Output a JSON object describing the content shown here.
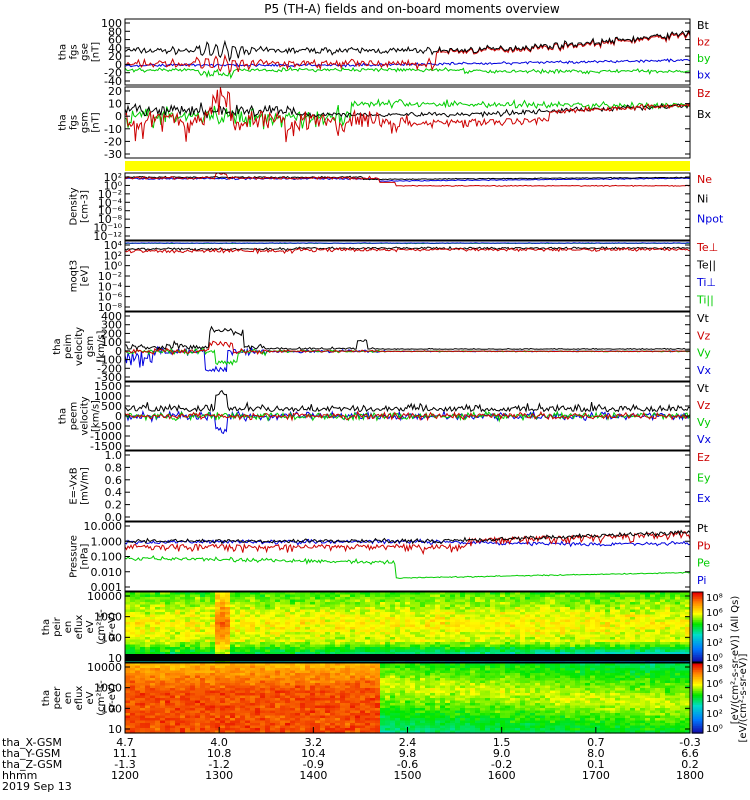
{
  "title": "P5 (TH-A) fields and on-board moments overview",
  "colors": {
    "black": "#000000",
    "red": "#cc0000",
    "green": "#00cc00",
    "blue": "#0000dd",
    "yellow": "#ffff00",
    "axis": "#000000"
  },
  "panels": [
    {
      "id": "fgs-mag",
      "ylabel": [
        "tha",
        "fgs",
        "gse",
        "[nT]"
      ],
      "ticks": [
        "100",
        "80",
        "60",
        "40",
        "20",
        "0",
        "-20",
        "-40"
      ],
      "legend": [
        {
          "label": "Bt",
          "color": "#000000"
        },
        {
          "label": "bz",
          "color": "#cc0000"
        },
        {
          "label": "by",
          "color": "#00cc00"
        },
        {
          "label": "bx",
          "color": "#0000dd"
        }
      ]
    },
    {
      "id": "fgs-gsm",
      "ylabel": [
        "tha",
        "fgs",
        "gsm",
        "[nT]"
      ],
      "ticks": [
        "20",
        "10",
        "0",
        "-10",
        "-20",
        "-30"
      ],
      "legend": [
        {
          "label": "Bz",
          "color": "#cc0000"
        },
        {
          "label": "Bx",
          "color": "#000000"
        }
      ]
    },
    {
      "id": "density",
      "ylabel": [
        "Density",
        "[cm-3]"
      ],
      "ticks": [
        "10²",
        "10⁰",
        "10⁻²",
        "10⁻⁴",
        "10⁻⁶",
        "10⁻⁸",
        "10⁻¹⁰",
        "10⁻¹²"
      ],
      "legend": [
        {
          "label": "Ne",
          "color": "#cc0000"
        },
        {
          "label": "Ni",
          "color": "#000000"
        },
        {
          "label": "Npot",
          "color": "#0000dd"
        }
      ]
    },
    {
      "id": "temperature",
      "ylabel": [
        "moqt3",
        "[eV]"
      ],
      "ticks": [
        "10⁴",
        "10²",
        "10⁰",
        "10⁻²",
        "10⁻⁴",
        "10⁻⁶",
        "10⁻⁸"
      ],
      "legend": [
        {
          "label": "Te⊥",
          "color": "#cc0000"
        },
        {
          "label": "Te||",
          "color": "#000000"
        },
        {
          "label": "Ti⊥",
          "color": "#0000dd"
        },
        {
          "label": "Ti||",
          "color": "#00cc00"
        }
      ]
    },
    {
      "id": "peim-velocity",
      "ylabel": [
        "tha",
        "peim",
        "velocity",
        "gsm",
        "[km/s]"
      ],
      "ticks": [
        "400",
        "300",
        "200",
        "100",
        "0",
        "-100",
        "-200",
        "-300"
      ],
      "legend": [
        {
          "label": "Vt",
          "color": "#000000"
        },
        {
          "label": "Vz",
          "color": "#cc0000"
        },
        {
          "label": "Vy",
          "color": "#00cc00"
        },
        {
          "label": "Vx",
          "color": "#0000dd"
        }
      ]
    },
    {
      "id": "peem-velocity",
      "ylabel": [
        "tha",
        "peem",
        "velocity",
        "[km/s]"
      ],
      "ticks": [
        "1500",
        "1000",
        "500",
        "0",
        "-500",
        "-1000",
        "-1500"
      ],
      "legend": [
        {
          "label": "Vt",
          "color": "#000000"
        },
        {
          "label": "Vz",
          "color": "#cc0000"
        },
        {
          "label": "Vy",
          "color": "#00cc00"
        },
        {
          "label": "Vx",
          "color": "#0000dd"
        }
      ]
    },
    {
      "id": "efield",
      "ylabel": [
        "E=-VxB",
        "[mV/m]"
      ],
      "ticks": [
        "1.0",
        "0.8",
        "0.6",
        "0.4",
        "0.2",
        "0.0"
      ],
      "legend": [
        {
          "label": "Ez",
          "color": "#cc0000"
        },
        {
          "label": "Ey",
          "color": "#00cc00"
        },
        {
          "label": "Ex",
          "color": "#0000dd"
        }
      ]
    },
    {
      "id": "pressure",
      "ylabel": [
        "Pressure",
        "[nPa]"
      ],
      "ticks": [
        "10.000",
        "1.000",
        "0.100",
        "0.010",
        "0.001"
      ],
      "legend": [
        {
          "label": "Pt",
          "color": "#000000"
        },
        {
          "label": "Pb",
          "color": "#cc0000"
        },
        {
          "label": "Pe",
          "color": "#00cc00"
        },
        {
          "label": "Pi",
          "color": "#0000dd"
        }
      ]
    },
    {
      "id": "peir-spec",
      "ylabel": [
        "tha",
        "peir",
        "en",
        "eflux",
        "eV",
        "(cm²-s-",
        "sr-eV)"
      ],
      "ticks": [
        "10000",
        "1000",
        "100",
        "10"
      ]
    },
    {
      "id": "peer-spec",
      "ylabel": [
        "tha",
        "peer",
        "en",
        "eflux",
        "eV",
        "(cm²-s-",
        "sr-eV)"
      ],
      "ticks": [
        "10000",
        "1000",
        "100",
        "10"
      ]
    }
  ],
  "colorbar": {
    "label": "[eV/(cm²-s-sr-eV)] (All Qs)",
    "label2": "[eV/(cm²-s-sr-eV)]",
    "ticks_top": [
      "10⁸",
      "10⁶",
      "10⁴",
      "10²",
      "10⁰"
    ],
    "ticks_bottom": [
      "10⁸",
      "10⁶",
      "10⁴",
      "10²",
      "10⁰"
    ]
  },
  "xaxis": {
    "rows": [
      {
        "label": "tha_X-GSM",
        "values": [
          "4.7",
          "4.0",
          "3.2",
          "2.4",
          "1.5",
          "0.7",
          "-0.3"
        ]
      },
      {
        "label": "tha_Y-GSM",
        "values": [
          "11.1",
          "10.8",
          "10.4",
          "9.8",
          "9.0",
          "8.0",
          "6.6"
        ]
      },
      {
        "label": "tha_Z-GSM",
        "values": [
          "-1.3",
          "-1.2",
          "-0.9",
          "-0.6",
          "-0.2",
          "0.1",
          "0.2"
        ]
      },
      {
        "label": "hhmm",
        "values": [
          "1200",
          "1300",
          "1400",
          "1500",
          "1600",
          "1700",
          "1800"
        ]
      }
    ],
    "date": "2019 Sep 13"
  }
}
